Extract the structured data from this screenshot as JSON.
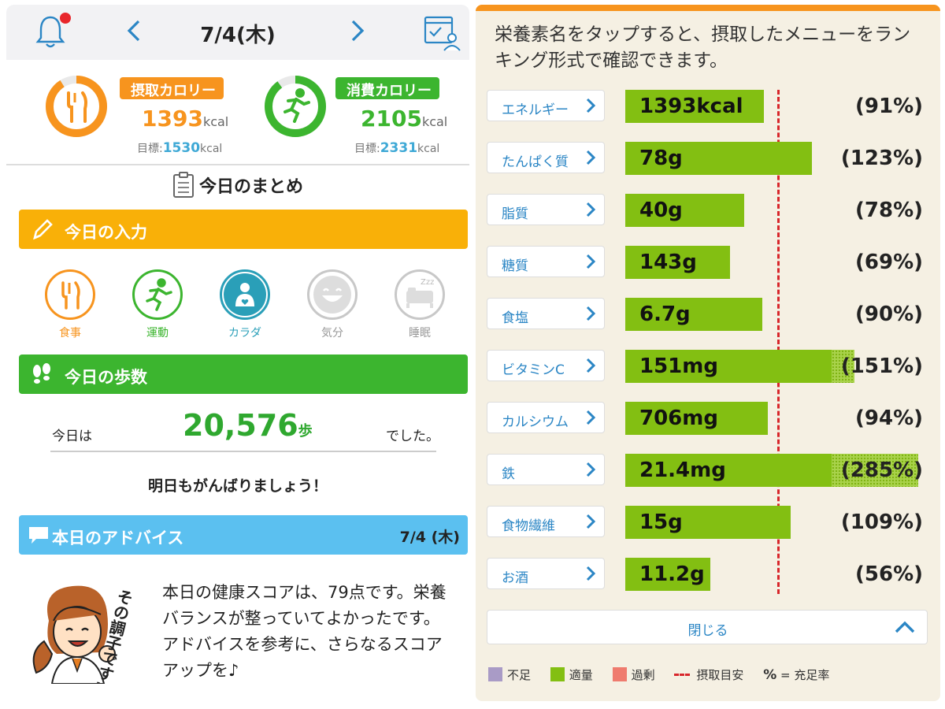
{
  "header": {
    "date": "7/4(木)",
    "prev_icon": "chevron-left-icon",
    "next_icon": "chevron-right-icon",
    "bell_icon": "bell-icon",
    "calendar_user_icon": "calendar-user-icon"
  },
  "calories": {
    "intake": {
      "label": "摂取カロリー",
      "value": "1393",
      "unit": "kcal",
      "target_label": "目標:",
      "target_value": "1530",
      "target_unit": "kcal",
      "ratio": 0.91,
      "color": "#f7941e"
    },
    "burn": {
      "label": "消費カロリー",
      "value": "2105",
      "unit": "kcal",
      "target_label": "目標:",
      "target_value": "2331",
      "target_unit": "kcal",
      "ratio": 0.9,
      "color": "#3cb52f"
    }
  },
  "summary": {
    "title": "今日のまとめ"
  },
  "today_input": {
    "title": "今日の入力",
    "color": "#f9b008",
    "items": [
      {
        "label": "食事",
        "icon": "fork-knife-icon",
        "color": "#f7941e"
      },
      {
        "label": "運動",
        "icon": "running-icon",
        "color": "#3cb52f"
      },
      {
        "label": "カラダ",
        "icon": "body-icon",
        "color": "#2a9fb8"
      },
      {
        "label": "気分",
        "icon": "smile-icon",
        "color": "#c8c8c8"
      },
      {
        "label": "睡眠",
        "icon": "bed-icon",
        "color": "#c8c8c8"
      }
    ]
  },
  "steps": {
    "title": "今日の歩数",
    "color": "#3cb52f",
    "prefix": "今日は",
    "value": "20,576",
    "unit": "歩",
    "suffix": "でした。",
    "cheer": "明日もがんばりましょう！"
  },
  "advice": {
    "title": "本日のアドバイス",
    "date": "7/4 (木)",
    "color": "#5bc0f0",
    "text": "本日の健康スコアは、79点です。栄養バランスが整っていてよかったです。アドバイスを参考に、さらなるスコアアップを♪",
    "illustration_text": "その調子です!!"
  },
  "nutrients": {
    "description": "栄養素名をタップすると、摂取したメニューをランキング形式で確認できます。",
    "items": [
      {
        "name": "エネルギー",
        "value": "1393kcal",
        "pct_label": "(91%)",
        "pct": 91
      },
      {
        "name": "たんぱく質",
        "value": "78g",
        "pct_label": "(123%)",
        "pct": 123
      },
      {
        "name": "脂質",
        "value": "40g",
        "pct_label": "(78%)",
        "pct": 78
      },
      {
        "name": "糖質",
        "value": "143g",
        "pct_label": "(69%)",
        "pct": 69
      },
      {
        "name": "食塩",
        "value": "6.7g",
        "pct_label": "(90%)",
        "pct": 90
      },
      {
        "name": "ビタミンC",
        "value": "151mg",
        "pct_label": "(151%)",
        "pct": 151
      },
      {
        "name": "カルシウム",
        "value": "706mg",
        "pct_label": "(94%)",
        "pct": 94
      },
      {
        "name": "鉄",
        "value": "21.4mg",
        "pct_label": "(285%)",
        "pct": 285
      },
      {
        "name": "食物繊維",
        "value": "15g",
        "pct_label": "(109%)",
        "pct": 109
      },
      {
        "name": "お酒",
        "value": "11.2g",
        "pct_label": "(56%)",
        "pct": 56
      }
    ],
    "close_label": "閉じる",
    "legend": {
      "insufficient": "不足",
      "adequate": "適量",
      "excess": "過剰",
      "target": "摂取目安",
      "pct_symbol": "%",
      "pct_meaning": "= 充足率"
    },
    "colors": {
      "insufficient": "#a99bc6",
      "adequate": "#83bf12",
      "excess": "#ef7b6e",
      "target": "#d8262b"
    }
  }
}
